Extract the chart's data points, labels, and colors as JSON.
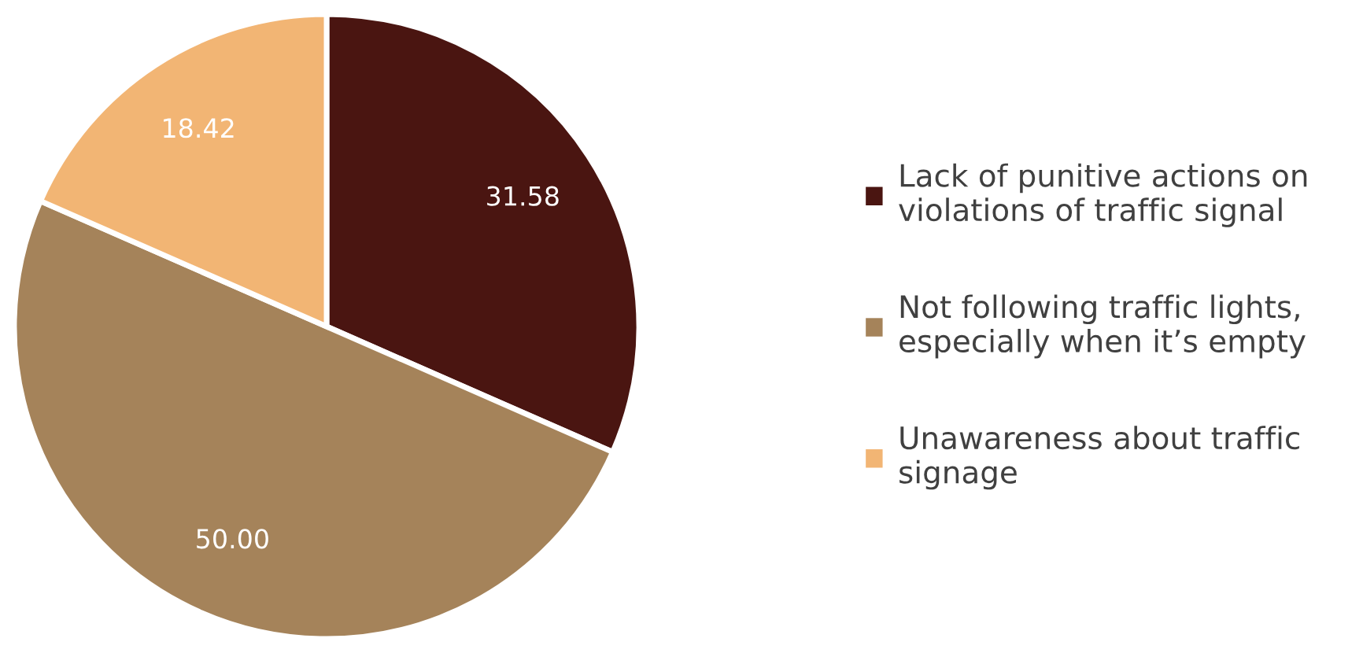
{
  "chart_data": {
    "type": "pie",
    "categories": [
      "Lack of punitive actions on\nviolations of traffic signal",
      "Not following traffic lights,\nespecially when it’s empty",
      "Unawareness about traffic\nsignage"
    ],
    "values": [
      31.58,
      50.0,
      18.42
    ],
    "value_labels": [
      "31.58",
      "50.00",
      "18.42"
    ],
    "colors": [
      "#4a1511",
      "#a5835a",
      "#f2b574"
    ],
    "legend": "right"
  }
}
